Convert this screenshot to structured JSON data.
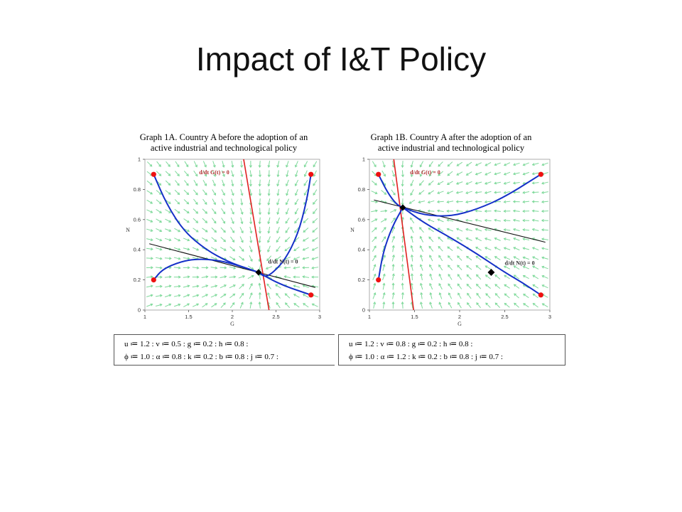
{
  "slide": {
    "title": "Impact of I&T Policy"
  },
  "colors": {
    "field_arrow": "#7ed99a",
    "trajectory": "#1530c8",
    "g_nullcline": "#e02020",
    "n_nullcline": "#111111",
    "endpoint": "#ee1111",
    "equilibrium": "#000000",
    "nullcline_label": "#b03030"
  },
  "nullcline_labels": {
    "g_label": "d/dt G(t) = 0",
    "n_label": "d/dt N(t) = 0"
  },
  "chart_data": [
    {
      "type": "scatter",
      "title_line1": "Graph 1A. Country A  before the adoption of an",
      "title_line2": "active industrial and technological policy",
      "xlabel": "G",
      "ylabel": "N",
      "xlim": [
        1,
        3
      ],
      "ylim": [
        0,
        1
      ],
      "xticks": [
        "1",
        "1.5",
        "2",
        "2.5",
        "3"
      ],
      "yticks": [
        "0",
        "0.2",
        "0.4",
        "0.6",
        "0.8",
        "1"
      ],
      "g_nullcline": [
        [
          2.13,
          1.0
        ],
        [
          2.42,
          0.0
        ]
      ],
      "n_nullcline": [
        [
          1.05,
          0.44
        ],
        [
          2.95,
          0.15
        ]
      ],
      "equilibrium": [
        2.3,
        0.25
      ],
      "endpoints": [
        [
          1.1,
          0.9
        ],
        [
          1.1,
          0.2
        ],
        [
          2.9,
          0.9
        ],
        [
          2.9,
          0.1
        ]
      ],
      "trajectories": [
        [
          [
            1.1,
            0.9
          ],
          [
            1.25,
            0.7
          ],
          [
            1.45,
            0.52
          ],
          [
            1.7,
            0.4
          ],
          [
            1.95,
            0.32
          ],
          [
            2.2,
            0.27
          ],
          [
            2.3,
            0.25
          ]
        ],
        [
          [
            1.1,
            0.2
          ],
          [
            1.2,
            0.27
          ],
          [
            1.4,
            0.32
          ],
          [
            1.6,
            0.34
          ],
          [
            1.85,
            0.33
          ],
          [
            2.1,
            0.29
          ],
          [
            2.3,
            0.25
          ]
        ],
        [
          [
            2.9,
            0.9
          ],
          [
            2.85,
            0.72
          ],
          [
            2.75,
            0.5
          ],
          [
            2.6,
            0.33
          ],
          [
            2.45,
            0.24
          ],
          [
            2.37,
            0.22
          ],
          [
            2.3,
            0.25
          ]
        ],
        [
          [
            2.3,
            0.25
          ],
          [
            2.45,
            0.2
          ],
          [
            2.6,
            0.16
          ],
          [
            2.75,
            0.13
          ],
          [
            2.9,
            0.1
          ]
        ]
      ],
      "params_line1": "u ≔ 1.2 : v ≔ 0.5 : g ≔ 0.2 : h ≔ 0.8 :",
      "params_line2": "ϕ ≔ 1.0 : α ≔ 0.8 : k ≔ 0.2 : b ≔ 0.8 : j ≔ 0.7 :"
    },
    {
      "type": "scatter",
      "title_line1": "Graph 1B. Country A after the adoption of an",
      "title_line2": "active industrial and technological policy",
      "xlabel": "G",
      "ylabel": "N",
      "xlim": [
        1,
        3
      ],
      "ylim": [
        0,
        1
      ],
      "xticks": [
        "1",
        "1.5",
        "2",
        "2.5",
        "3"
      ],
      "yticks": [
        "0",
        "0.2",
        "0.4",
        "0.6",
        "0.8",
        "1"
      ],
      "g_nullcline": [
        [
          1.27,
          1.0
        ],
        [
          1.49,
          0.0
        ]
      ],
      "n_nullcline": [
        [
          1.05,
          0.73
        ],
        [
          2.95,
          0.45
        ]
      ],
      "equilibrium": [
        1.37,
        0.68
      ],
      "extra_marker": [
        2.35,
        0.25
      ],
      "endpoints": [
        [
          1.1,
          0.9
        ],
        [
          1.1,
          0.2
        ],
        [
          2.9,
          0.9
        ],
        [
          2.9,
          0.1
        ]
      ],
      "trajectories": [
        [
          [
            1.1,
            0.9
          ],
          [
            1.2,
            0.78
          ],
          [
            1.3,
            0.7
          ],
          [
            1.37,
            0.68
          ]
        ],
        [
          [
            1.1,
            0.2
          ],
          [
            1.15,
            0.38
          ],
          [
            1.25,
            0.55
          ],
          [
            1.37,
            0.68
          ]
        ],
        [
          [
            1.37,
            0.68
          ],
          [
            1.6,
            0.63
          ],
          [
            1.9,
            0.62
          ],
          [
            2.2,
            0.67
          ],
          [
            2.5,
            0.75
          ],
          [
            2.9,
            0.9
          ]
        ],
        [
          [
            1.37,
            0.68
          ],
          [
            1.6,
            0.58
          ],
          [
            1.9,
            0.48
          ],
          [
            2.2,
            0.37
          ],
          [
            2.5,
            0.25
          ],
          [
            2.7,
            0.18
          ],
          [
            2.9,
            0.1
          ]
        ]
      ],
      "params_line1": "u ≔ 1.2 : v ≔ 0.8 : g ≔ 0.2 : h ≔ 0.8 :",
      "params_line2": "ϕ ≔ 1.0 : α ≔ 1.2 : k ≔ 0.2 : b ≔ 0.8 : j ≔ 0.7 :"
    }
  ]
}
